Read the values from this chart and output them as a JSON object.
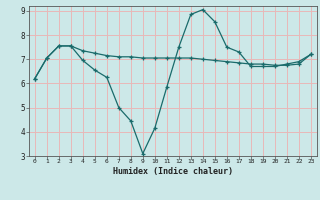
{
  "xlabel": "Humidex (Indice chaleur)",
  "bg_color": "#cce8e8",
  "grid_color": "#e8b8b8",
  "line_color": "#1a6b6b",
  "xlim": [
    -0.5,
    23.5
  ],
  "ylim": [
    3,
    9.2
  ],
  "yticks": [
    3,
    4,
    5,
    6,
    7,
    8,
    9
  ],
  "xticks": [
    0,
    1,
    2,
    3,
    4,
    5,
    6,
    7,
    8,
    9,
    10,
    11,
    12,
    13,
    14,
    15,
    16,
    17,
    18,
    19,
    20,
    21,
    22,
    23
  ],
  "line1_x": [
    0,
    1,
    2,
    3,
    4,
    5,
    6,
    7,
    8,
    9,
    10,
    11,
    12,
    13,
    14,
    15,
    16,
    17,
    18,
    19,
    20,
    21,
    22,
    23
  ],
  "line1_y": [
    6.2,
    7.05,
    7.55,
    7.55,
    6.95,
    6.55,
    6.25,
    5.0,
    4.45,
    3.1,
    4.15,
    5.85,
    7.5,
    8.85,
    9.05,
    8.55,
    7.5,
    7.3,
    6.7,
    6.7,
    6.7,
    6.8,
    6.9,
    7.2
  ],
  "line2_x": [
    0,
    1,
    2,
    3,
    4,
    5,
    6,
    7,
    8,
    9,
    10,
    11,
    12,
    13,
    14,
    15,
    16,
    17,
    18,
    19,
    20,
    21,
    22,
    23
  ],
  "line2_y": [
    6.2,
    7.05,
    7.55,
    7.55,
    7.35,
    7.25,
    7.15,
    7.1,
    7.1,
    7.05,
    7.05,
    7.05,
    7.05,
    7.05,
    7.0,
    6.95,
    6.9,
    6.85,
    6.8,
    6.8,
    6.75,
    6.75,
    6.8,
    7.2
  ],
  "marker_size": 3.5,
  "line_width": 0.9
}
